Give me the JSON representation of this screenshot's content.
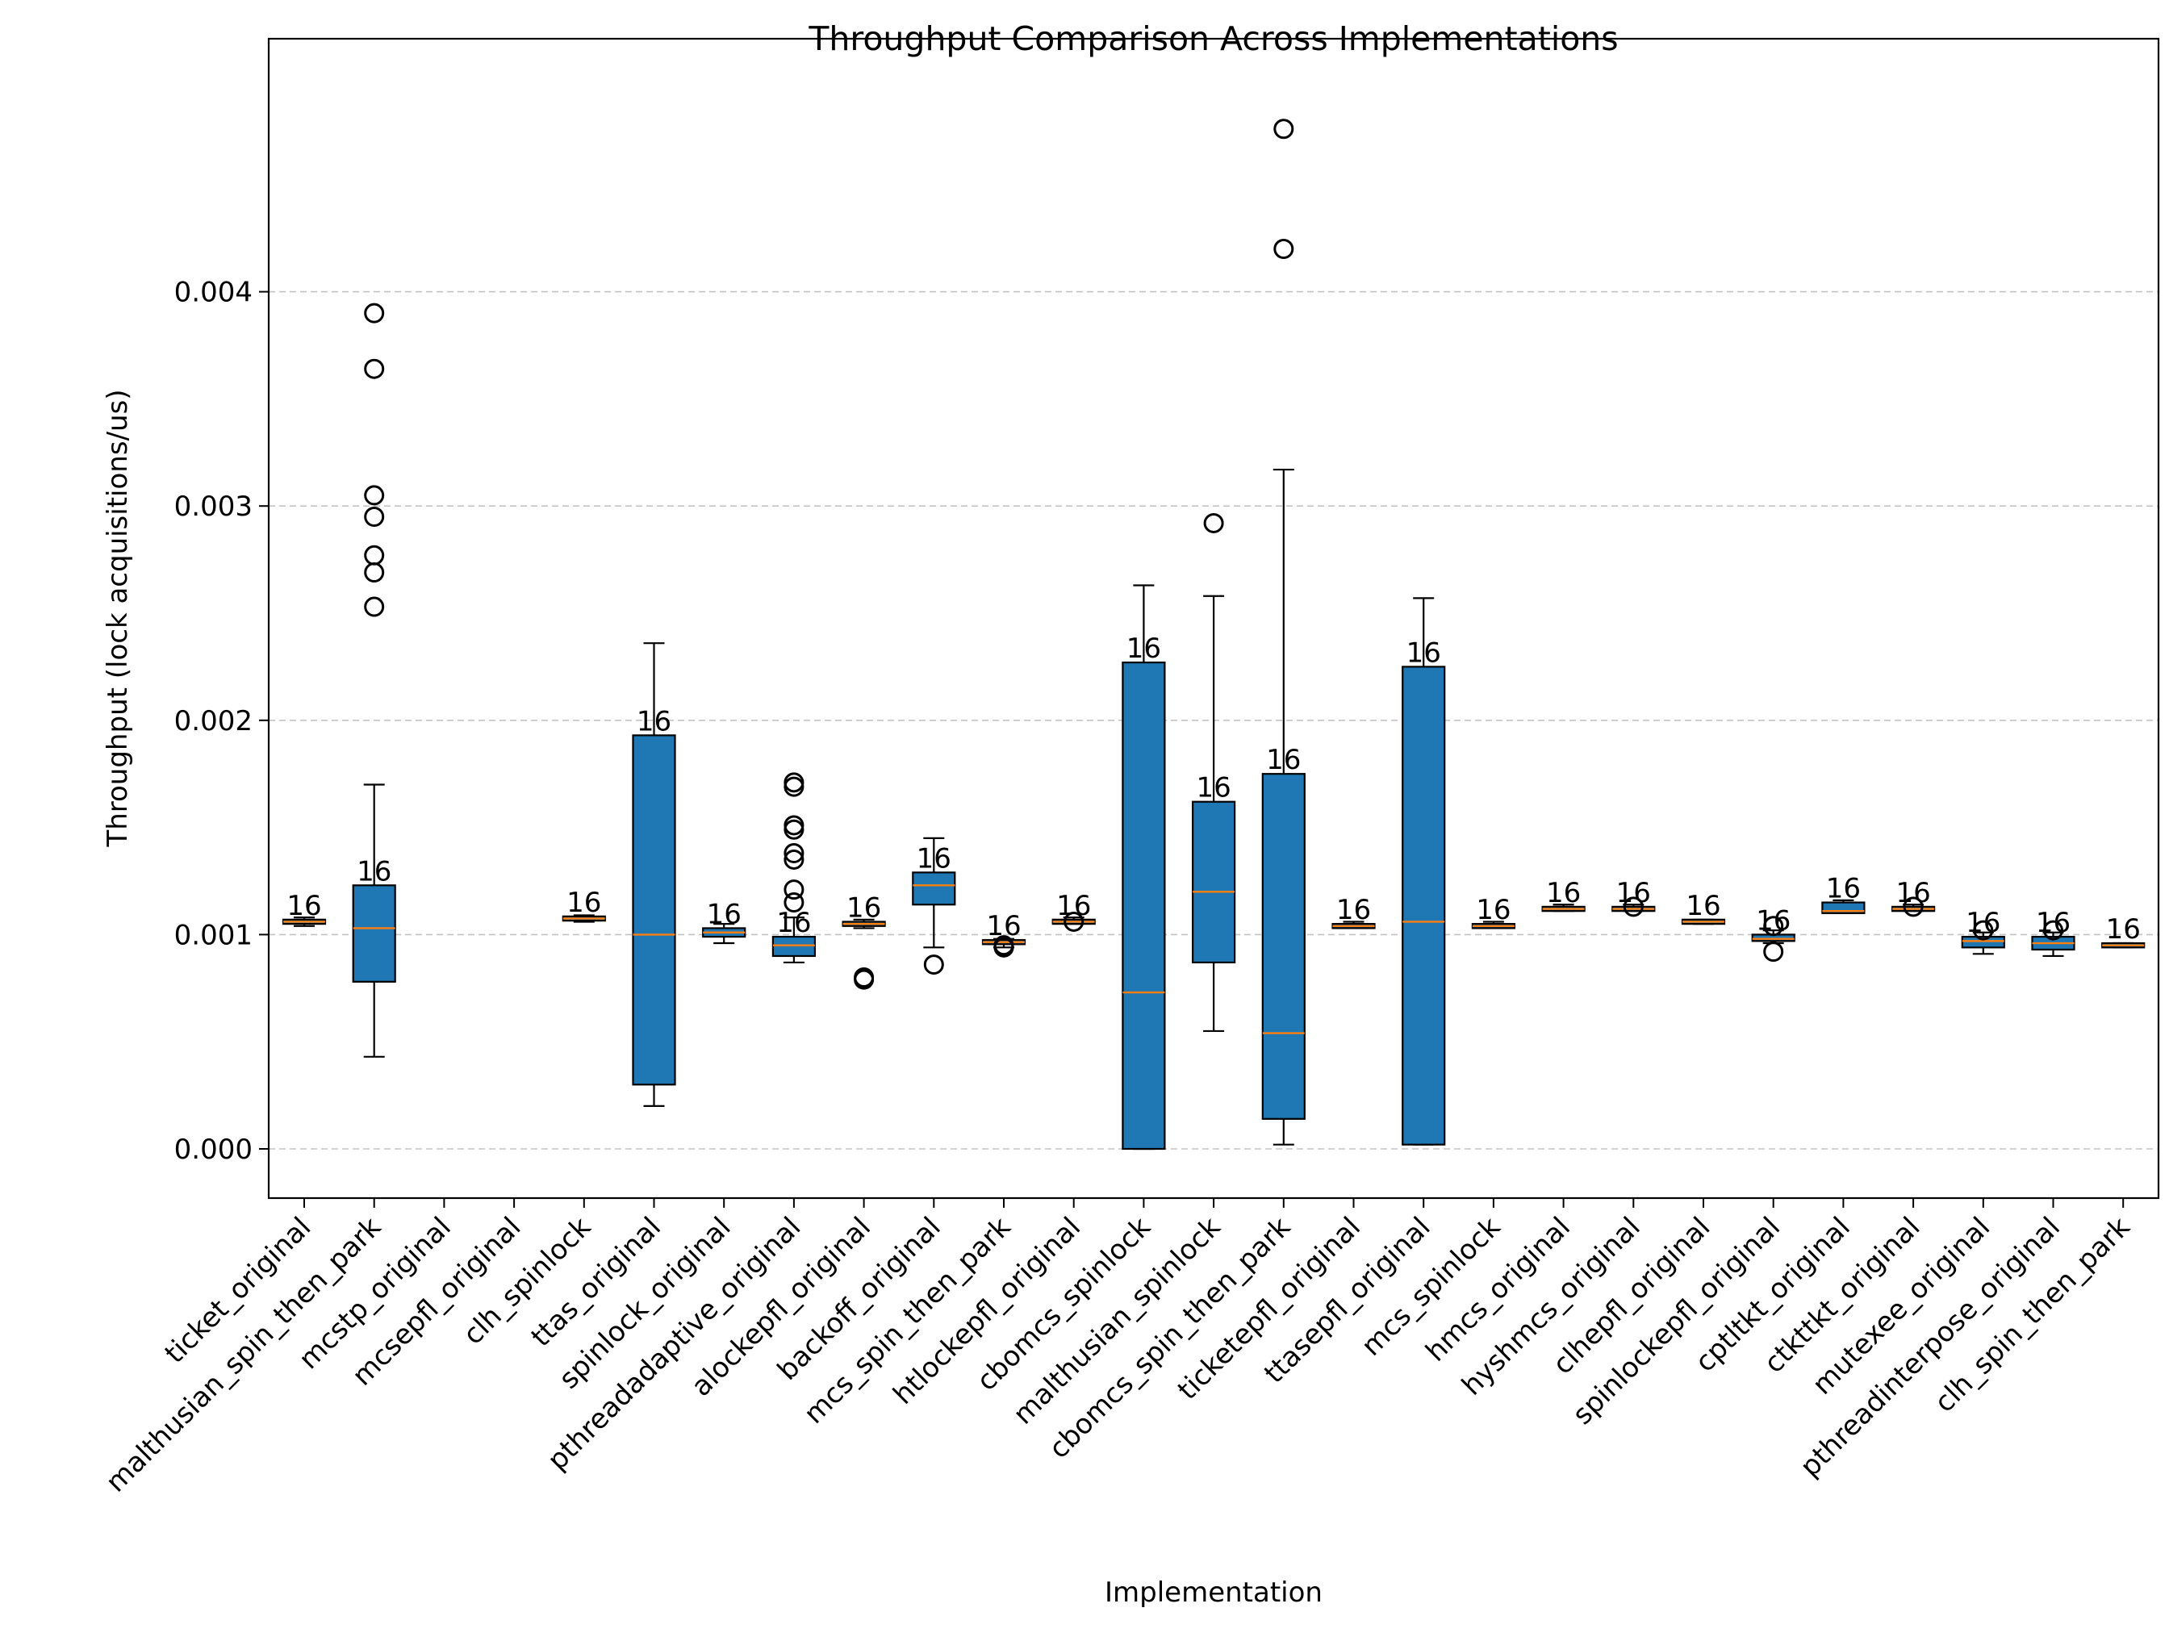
{
  "chart_data": {
    "type": "box",
    "title": "Throughput Comparison Across Implementations",
    "xlabel": "Implementation",
    "ylabel": "Throughput (lock acquisitions/us)",
    "ylim": [
      -0.00023,
      0.005
    ],
    "yticks": [
      0.0,
      0.001,
      0.002,
      0.003,
      0.004
    ],
    "ytick_labels": [
      "0.000",
      "0.001",
      "0.002",
      "0.003",
      "0.004"
    ],
    "grid": "y-dashed",
    "box_color": "#1f77b4",
    "median_color": "#ff7f0e",
    "categories": [
      "ticket_original",
      "malthusian_spin_then_park",
      "mcstp_original",
      "mcsepfl_original",
      "clh_spinlock",
      "ttas_original",
      "spinlock_original",
      "pthreadadaptive_original",
      "alockepfl_original",
      "backoff_original",
      "mcs_spin_then_park",
      "htlockepfl_original",
      "cbomcs_spinlock",
      "malthusian_spinlock",
      "cbomcs_spin_then_park",
      "ticketepfl_original",
      "ttasepfl_original",
      "mcs_spinlock",
      "hmcs_original",
      "hyshmcs_original",
      "clhepfl_original",
      "spinlockepfl_original",
      "cptltkt_original",
      "ctkttkt_original",
      "mutexee_original",
      "pthreadinterpose_original",
      "clh_spin_then_park"
    ],
    "boxes": [
      {
        "whislo": 0.00104,
        "q1": 0.00105,
        "med": 0.00106,
        "q3": 0.00107,
        "whishi": 0.00108,
        "fliers": [],
        "label": "16"
      },
      {
        "whislo": 0.00043,
        "q1": 0.00078,
        "med": 0.00103,
        "q3": 0.00123,
        "whishi": 0.0017,
        "fliers": [
          0.00253,
          0.00269,
          0.00277,
          0.00295,
          0.00305,
          0.00364,
          0.0039
        ],
        "label": "16"
      },
      null,
      null,
      {
        "whislo": 0.00106,
        "q1": 0.001065,
        "med": 0.001075,
        "q3": 0.001085,
        "whishi": 0.00109,
        "fliers": [],
        "label": "16"
      },
      {
        "whislo": 0.0002,
        "q1": 0.0003,
        "med": 0.001,
        "q3": 0.00193,
        "whishi": 0.00236,
        "fliers": [],
        "label": "16"
      },
      {
        "whislo": 0.00096,
        "q1": 0.00099,
        "med": 0.00101,
        "q3": 0.00103,
        "whishi": 0.00105,
        "fliers": [],
        "label": "16"
      },
      {
        "whislo": 0.00087,
        "q1": 0.0009,
        "med": 0.00095,
        "q3": 0.00099,
        "whishi": 0.00108,
        "fliers": [
          0.00115,
          0.00121,
          0.00135,
          0.00138,
          0.00149,
          0.00151,
          0.00169,
          0.00171
        ],
        "label": "16"
      },
      {
        "whislo": 0.00103,
        "q1": 0.00104,
        "med": 0.00105,
        "q3": 0.00106,
        "whishi": 0.00107,
        "fliers": [
          0.00079,
          0.0008
        ],
        "label": "16"
      },
      {
        "whislo": 0.00094,
        "q1": 0.00114,
        "med": 0.00123,
        "q3": 0.00129,
        "whishi": 0.00145,
        "fliers": [
          0.00086
        ],
        "label": "16"
      },
      {
        "whislo": 0.00094,
        "q1": 0.000955,
        "med": 0.000965,
        "q3": 0.000975,
        "whishi": 0.00098,
        "fliers": [
          0.00094,
          0.00095
        ],
        "label": "16"
      },
      {
        "whislo": 0.00105,
        "q1": 0.00105,
        "med": 0.00106,
        "q3": 0.00107,
        "whishi": 0.00108,
        "fliers": [
          0.00106
        ],
        "label": "16"
      },
      {
        "whislo": 0.0,
        "q1": 0.0,
        "med": 0.00073,
        "q3": 0.00227,
        "whishi": 0.00263,
        "fliers": [],
        "label": "16"
      },
      {
        "whislo": 0.00055,
        "q1": 0.00087,
        "med": 0.0012,
        "q3": 0.00162,
        "whishi": 0.00258,
        "fliers": [
          0.00292
        ],
        "label": "16"
      },
      {
        "whislo": 2e-05,
        "q1": 0.00014,
        "med": 0.00054,
        "q3": 0.00175,
        "whishi": 0.00317,
        "fliers": [
          0.0042,
          0.00476
        ],
        "label": "16"
      },
      {
        "whislo": 0.00103,
        "q1": 0.00103,
        "med": 0.00104,
        "q3": 0.00105,
        "whishi": 0.00106,
        "fliers": [],
        "label": "16"
      },
      {
        "whislo": 2e-05,
        "q1": 2e-05,
        "med": 0.00106,
        "q3": 0.00225,
        "whishi": 0.00257,
        "fliers": [],
        "label": "16"
      },
      {
        "whislo": 0.00103,
        "q1": 0.00103,
        "med": 0.00104,
        "q3": 0.00105,
        "whishi": 0.00106,
        "fliers": [],
        "label": "16"
      },
      {
        "whislo": 0.00111,
        "q1": 0.00111,
        "med": 0.00112,
        "q3": 0.00113,
        "whishi": 0.00114,
        "fliers": [],
        "label": "16"
      },
      {
        "whislo": 0.00111,
        "q1": 0.00111,
        "med": 0.00112,
        "q3": 0.00113,
        "whishi": 0.00114,
        "fliers": [
          0.00113
        ],
        "label": "16"
      },
      {
        "whislo": 0.00105,
        "q1": 0.00105,
        "med": 0.00106,
        "q3": 0.00107,
        "whishi": 0.00107,
        "fliers": [],
        "label": "16"
      },
      {
        "whislo": 0.00096,
        "q1": 0.00097,
        "med": 0.00098,
        "q3": 0.001,
        "whishi": 0.00102,
        "fliers": [
          0.00092,
          0.00104
        ],
        "label": "16"
      },
      {
        "whislo": 0.0011,
        "q1": 0.0011,
        "med": 0.00111,
        "q3": 0.00115,
        "whishi": 0.00116,
        "fliers": [],
        "label": "16"
      },
      {
        "whislo": 0.00111,
        "q1": 0.00111,
        "med": 0.00112,
        "q3": 0.00113,
        "whishi": 0.00114,
        "fliers": [
          0.00113
        ],
        "label": "16"
      },
      {
        "whislo": 0.00091,
        "q1": 0.00094,
        "med": 0.00097,
        "q3": 0.00099,
        "whishi": 0.00101,
        "fliers": [
          0.00102
        ],
        "label": "16"
      },
      {
        "whislo": 0.0009,
        "q1": 0.00093,
        "med": 0.00096,
        "q3": 0.00099,
        "whishi": 0.00101,
        "fliers": [
          0.00102
        ],
        "label": "16"
      },
      {
        "whislo": 0.00094,
        "q1": 0.00094,
        "med": 0.00095,
        "q3": 0.00096,
        "whishi": 0.00096,
        "fliers": [],
        "label": "16"
      }
    ]
  }
}
